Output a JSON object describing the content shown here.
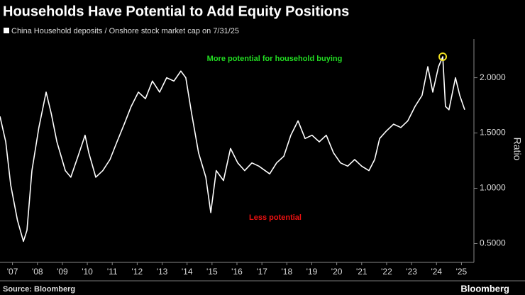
{
  "chart_data": {
    "type": "line",
    "title": "Households Have Potential to Add Equity Positions",
    "y_label": "Ratio",
    "source": "Source: Bloomberg",
    "brand": "Bloomberg",
    "annotations": [
      {
        "text": "More potential for household buying",
        "color": "#22dd22"
      },
      {
        "text": "Less potential",
        "color": "#ee1111"
      }
    ],
    "x": [
      2007.0,
      2007.23,
      2007.43,
      2007.7,
      2007.94,
      2008.08,
      2008.28,
      2008.56,
      2008.85,
      2009.05,
      2009.28,
      2009.62,
      2009.84,
      2010.13,
      2010.41,
      2010.56,
      2010.84,
      2011.12,
      2011.41,
      2011.69,
      2011.98,
      2012.26,
      2012.55,
      2012.83,
      2013.11,
      2013.4,
      2013.68,
      2013.97,
      2014.25,
      2014.45,
      2014.68,
      2014.96,
      2015.25,
      2015.45,
      2015.67,
      2015.96,
      2016.24,
      2016.53,
      2016.81,
      2017.1,
      2017.38,
      2017.81,
      2018.09,
      2018.38,
      2018.66,
      2018.95,
      2019.23,
      2019.51,
      2019.8,
      2020.08,
      2020.37,
      2020.65,
      2020.94,
      2021.22,
      2021.5,
      2021.79,
      2022.02,
      2022.22,
      2022.5,
      2022.78,
      2023.07,
      2023.35,
      2023.64,
      2023.92,
      2024.15,
      2024.35,
      2024.58,
      2024.75,
      2024.86,
      2025.0,
      2025.26,
      2025.43,
      2025.63
    ],
    "series": [
      {
        "name": "China Household deposits / Onshore stock market cap on 7/31/25",
        "color": "#ffffff",
        "values": [
          1.65,
          1.42,
          1.03,
          0.71,
          0.52,
          0.62,
          1.16,
          1.55,
          1.87,
          1.68,
          1.42,
          1.16,
          1.1,
          1.29,
          1.48,
          1.32,
          1.1,
          1.16,
          1.26,
          1.42,
          1.58,
          1.74,
          1.87,
          1.81,
          1.97,
          1.87,
          2.0,
          1.97,
          2.06,
          2.0,
          1.68,
          1.32,
          1.1,
          0.78,
          1.16,
          1.07,
          1.36,
          1.23,
          1.16,
          1.23,
          1.2,
          1.13,
          1.23,
          1.29,
          1.48,
          1.61,
          1.45,
          1.48,
          1.42,
          1.48,
          1.32,
          1.23,
          1.2,
          1.26,
          1.2,
          1.16,
          1.26,
          1.45,
          1.52,
          1.58,
          1.55,
          1.61,
          1.74,
          1.84,
          2.1,
          1.87,
          2.1,
          2.19,
          1.74,
          1.71,
          2.0,
          1.84,
          1.71
        ]
      }
    ],
    "highlight_color": "#f0e020",
    "xlim": [
      2007.0,
      2026.0
    ],
    "xticks": [
      {
        "value": 2007.5,
        "label": "'07"
      },
      {
        "value": 2008.5,
        "label": "'08"
      },
      {
        "value": 2009.5,
        "label": "'09"
      },
      {
        "value": 2010.5,
        "label": "'10"
      },
      {
        "value": 2011.5,
        "label": "'11"
      },
      {
        "value": 2012.5,
        "label": "'12"
      },
      {
        "value": 2013.5,
        "label": "'13"
      },
      {
        "value": 2014.5,
        "label": "'14"
      },
      {
        "value": 2015.5,
        "label": "'15"
      },
      {
        "value": 2016.5,
        "label": "'16"
      },
      {
        "value": 2017.5,
        "label": "'17"
      },
      {
        "value": 2018.5,
        "label": "'18"
      },
      {
        "value": 2019.5,
        "label": "'19"
      },
      {
        "value": 2020.5,
        "label": "'20"
      },
      {
        "value": 2021.5,
        "label": "'21"
      },
      {
        "value": 2022.5,
        "label": "'22"
      },
      {
        "value": 2023.5,
        "label": "'23"
      },
      {
        "value": 2024.5,
        "label": "'24"
      },
      {
        "value": 2025.5,
        "label": "'25"
      }
    ],
    "ylim": [
      0.33,
      2.35
    ],
    "yticks": [
      {
        "value": 0.5,
        "label": "0.5000"
      },
      {
        "value": 1.0,
        "label": "1.0000"
      },
      {
        "value": 1.5,
        "label": "1.5000"
      },
      {
        "value": 2.0,
        "label": "2.0000"
      }
    ]
  }
}
